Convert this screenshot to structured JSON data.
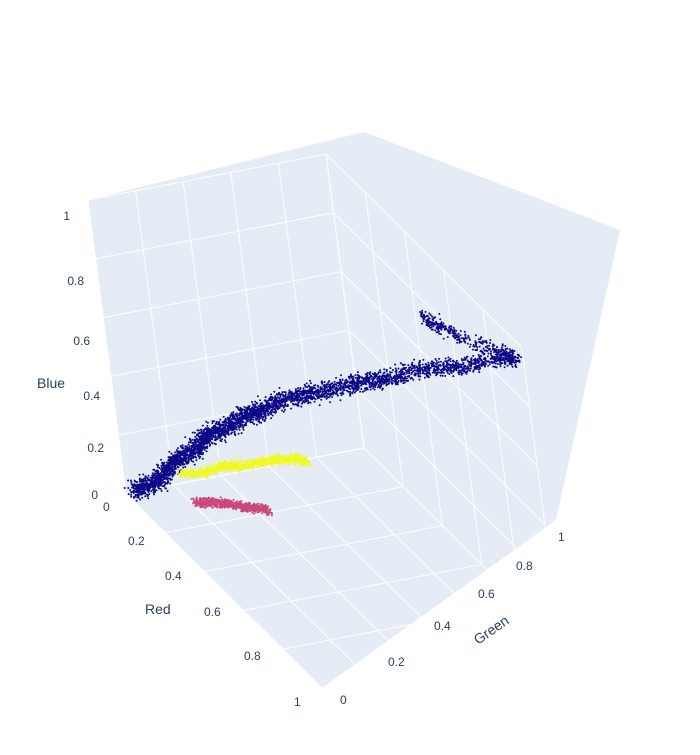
{
  "chart_data": {
    "type": "scatter3d",
    "axes": {
      "x": {
        "label": "Red",
        "range": [
          0,
          1
        ],
        "ticks": [
          "0",
          "0.2",
          "0.4",
          "0.6",
          "0.8",
          "1"
        ]
      },
      "y": {
        "label": "Green",
        "range": [
          0,
          1
        ],
        "ticks": [
          "0",
          "0.2",
          "0.4",
          "0.6",
          "0.8",
          "1"
        ]
      },
      "z": {
        "label": "Blue",
        "range": [
          0,
          1
        ],
        "ticks": [
          "0",
          "0.2",
          "0.4",
          "0.6",
          "0.8",
          "1"
        ]
      }
    },
    "background_color": "#e5ecf6",
    "grid_color": "#ffffff",
    "legend": "none",
    "series": [
      {
        "color": "#0d0887",
        "description": "main cloud along the diagonal from black to white",
        "points": [
          [
            0.02,
            0.02,
            0.02
          ],
          [
            0.05,
            0.04,
            0.05
          ],
          [
            0.08,
            0.07,
            0.08
          ],
          [
            0.1,
            0.1,
            0.12
          ],
          [
            0.12,
            0.12,
            0.16
          ],
          [
            0.15,
            0.14,
            0.2
          ],
          [
            0.18,
            0.18,
            0.24
          ],
          [
            0.2,
            0.2,
            0.28
          ],
          [
            0.22,
            0.22,
            0.32
          ],
          [
            0.25,
            0.25,
            0.34
          ],
          [
            0.28,
            0.28,
            0.38
          ],
          [
            0.3,
            0.32,
            0.42
          ],
          [
            0.33,
            0.35,
            0.44
          ],
          [
            0.36,
            0.38,
            0.48
          ],
          [
            0.4,
            0.42,
            0.52
          ],
          [
            0.45,
            0.46,
            0.56
          ],
          [
            0.5,
            0.5,
            0.6
          ],
          [
            0.55,
            0.56,
            0.64
          ],
          [
            0.6,
            0.62,
            0.68
          ],
          [
            0.66,
            0.66,
            0.72
          ],
          [
            0.72,
            0.72,
            0.78
          ],
          [
            0.78,
            0.8,
            0.82
          ],
          [
            0.85,
            0.86,
            0.86
          ],
          [
            0.92,
            0.94,
            0.92
          ],
          [
            0.98,
            0.98,
            0.96
          ],
          [
            0.8,
            0.88,
            0.93
          ],
          [
            0.65,
            0.85,
            0.9
          ]
        ]
      },
      {
        "color": "#f0f921",
        "description": "yellow cluster at mid-low brightness",
        "points": [
          [
            0.14,
            0.14,
            0.14
          ],
          [
            0.18,
            0.2,
            0.16
          ],
          [
            0.22,
            0.26,
            0.2
          ],
          [
            0.26,
            0.3,
            0.22
          ],
          [
            0.3,
            0.36,
            0.25
          ],
          [
            0.34,
            0.4,
            0.28
          ],
          [
            0.38,
            0.44,
            0.3
          ],
          [
            0.4,
            0.48,
            0.3
          ]
        ]
      },
      {
        "color": "#cc4778",
        "description": "pink cluster, red-dominant, low blue",
        "points": [
          [
            0.2,
            0.14,
            0.08
          ],
          [
            0.24,
            0.18,
            0.1
          ],
          [
            0.28,
            0.21,
            0.12
          ],
          [
            0.32,
            0.24,
            0.13
          ],
          [
            0.36,
            0.27,
            0.15
          ],
          [
            0.4,
            0.3,
            0.16
          ]
        ]
      }
    ]
  }
}
